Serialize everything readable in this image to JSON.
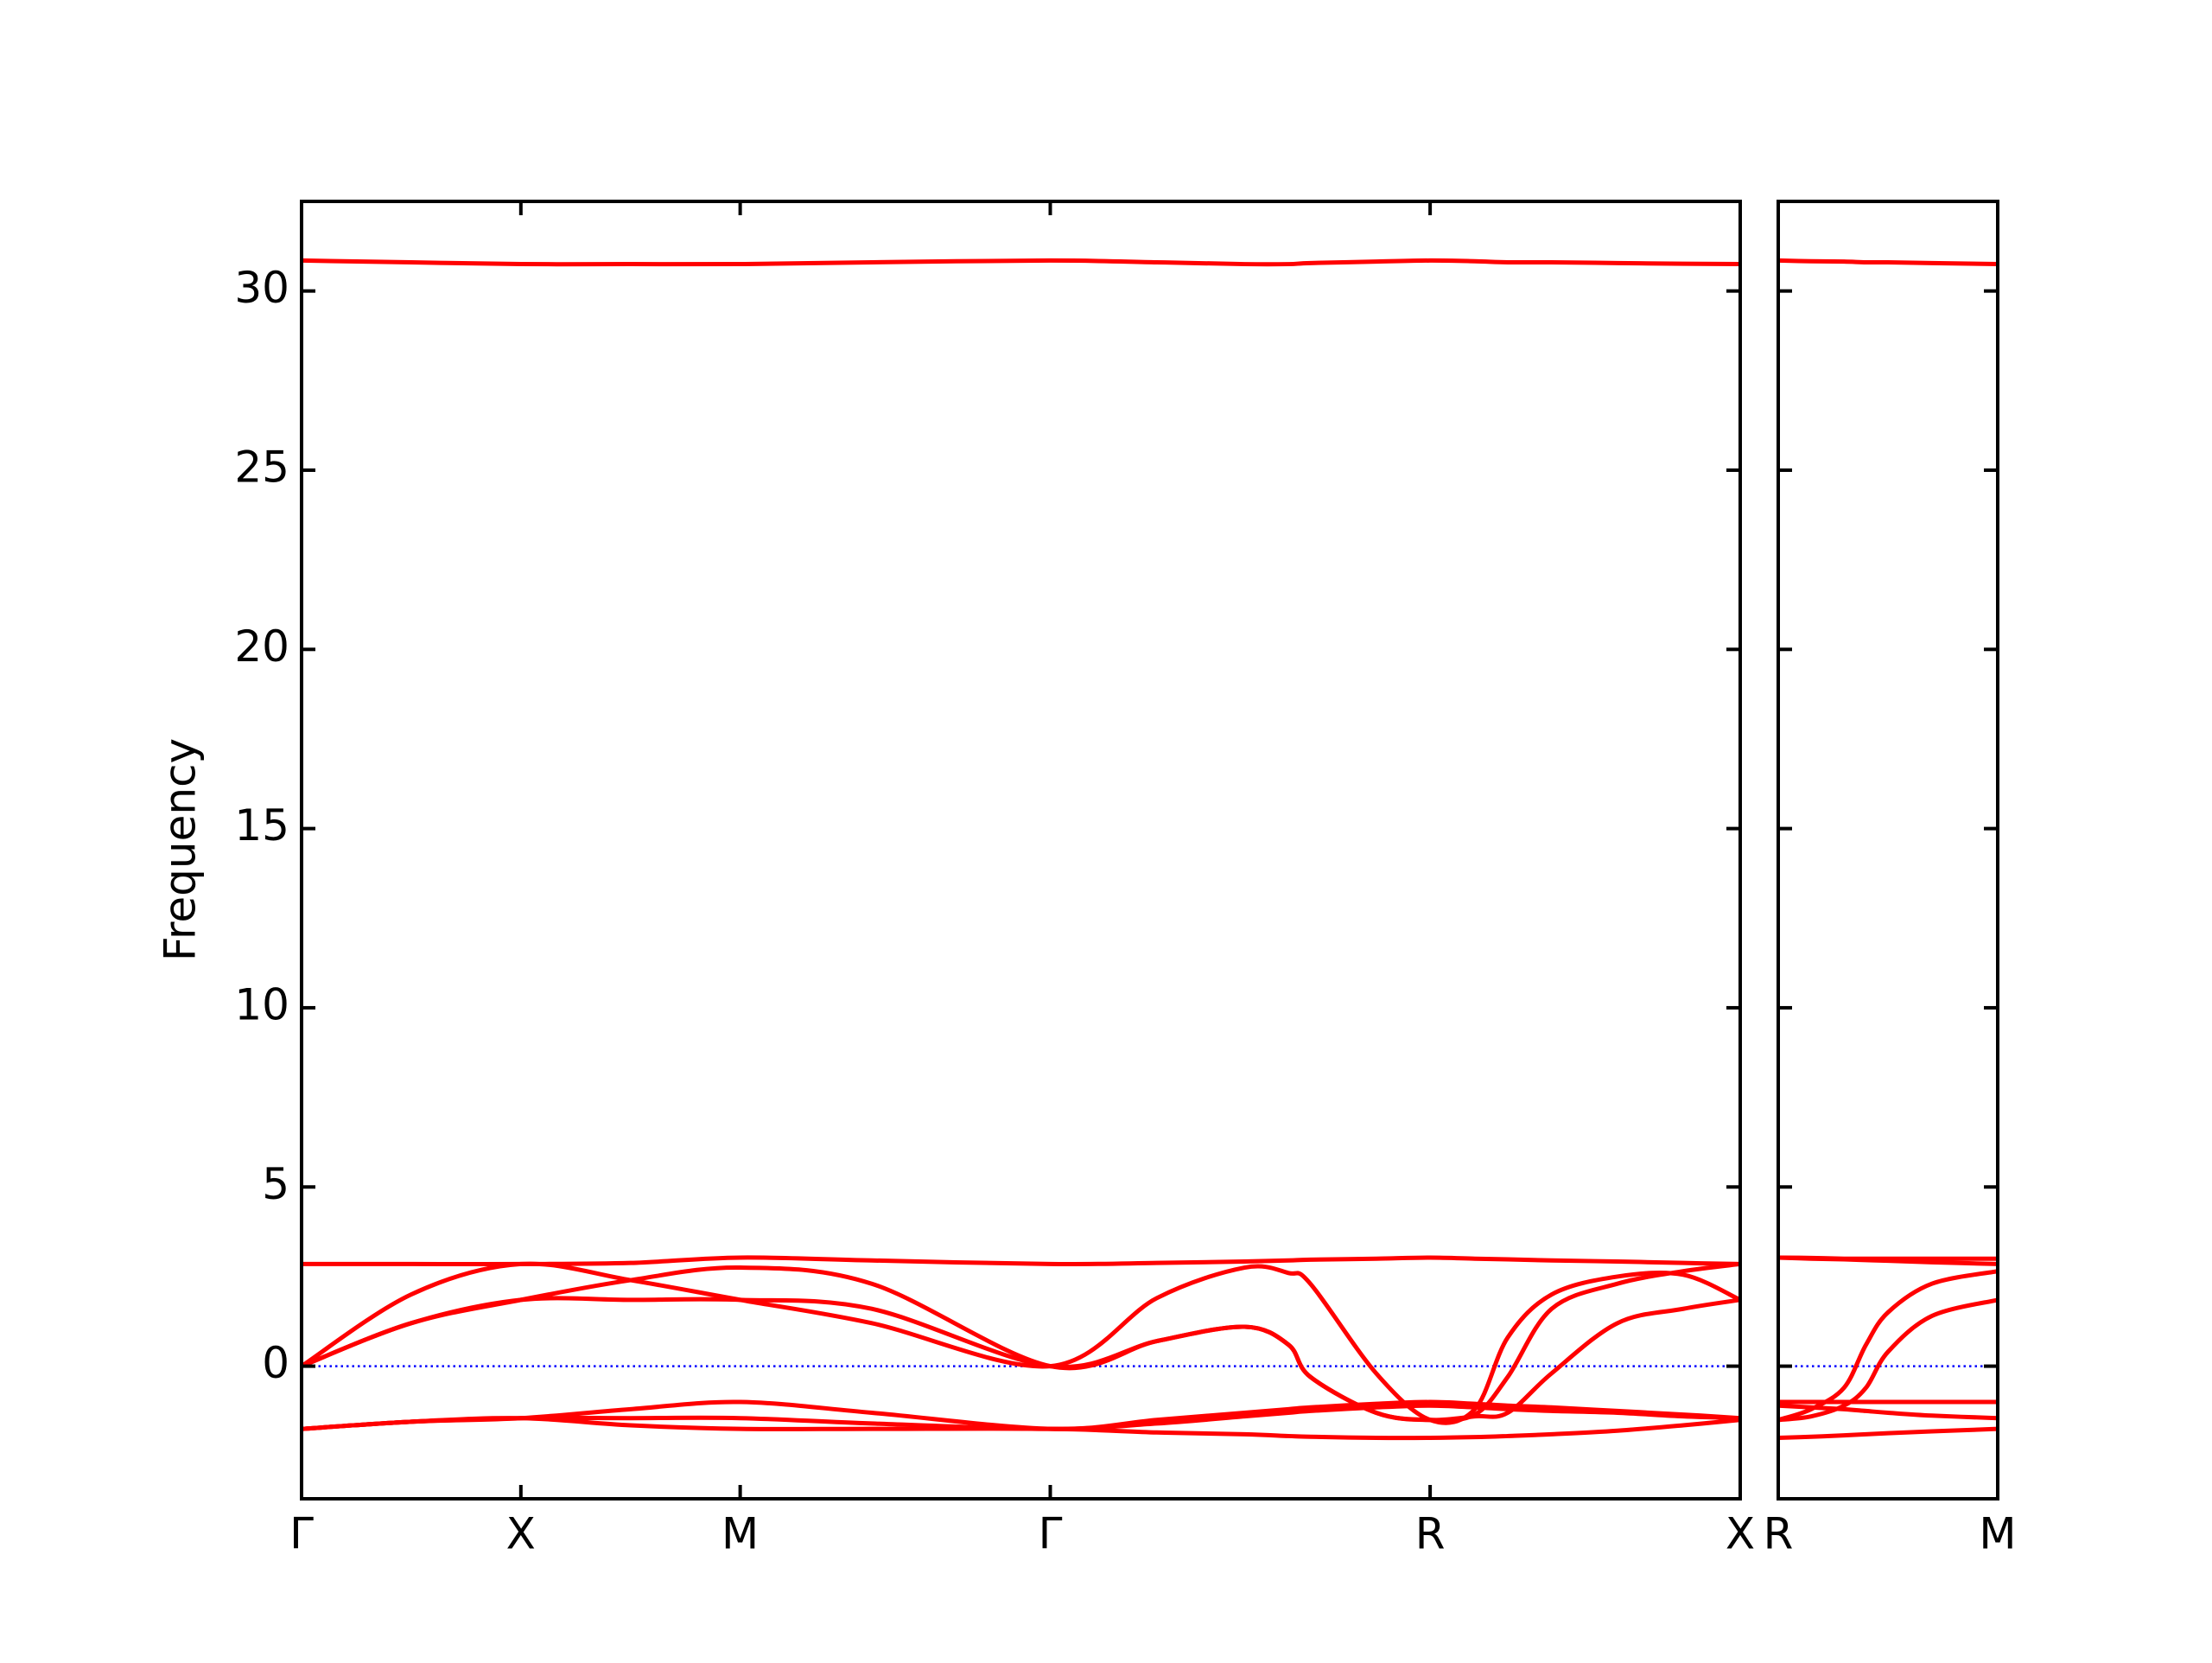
{
  "chart_data": [
    {
      "type": "line",
      "ylabel": "Frequency",
      "xlim": [
        0,
        6.56
      ],
      "ylim": [
        -3.7,
        32.5
      ],
      "xticks": [
        {
          "value": 0,
          "label": "Γ"
        },
        {
          "value": 1,
          "label": "X"
        },
        {
          "value": 2,
          "label": "M"
        },
        {
          "value": 3.414,
          "label": "Γ"
        },
        {
          "value": 5.146,
          "label": "R"
        },
        {
          "value": 6.56,
          "label": "X"
        }
      ],
      "yticks": [
        0,
        5,
        10,
        15,
        20,
        25,
        30
      ],
      "ytick_labels": true,
      "hline": {
        "value": 0,
        "color": "#0000ff",
        "style": "dotted"
      },
      "x": [
        0,
        0.5,
        1,
        1.5,
        2,
        2.6,
        3.414,
        3.9,
        4.3,
        4.5,
        4.6,
        4.9,
        5.146,
        5.35,
        5.5,
        5.7,
        6.0,
        6.3,
        6.56
      ],
      "series": [
        {
          "color": "#ff0000",
          "values": [
            30.85,
            30.8,
            30.75,
            30.75,
            30.75,
            30.8,
            30.85,
            30.8,
            30.75,
            30.75,
            30.78,
            30.82,
            30.85,
            30.83,
            30.8,
            30.8,
            30.78,
            30.76,
            30.75
          ]
        },
        {
          "color": "#ff0000",
          "values": [
            2.85,
            2.85,
            2.85,
            2.88,
            3.03,
            2.95,
            2.85,
            2.88,
            2.92,
            2.95,
            2.97,
            3.0,
            3.03,
            3.0,
            2.98,
            2.95,
            2.92,
            2.88,
            2.85
          ]
        },
        {
          "color": "#ff0000",
          "values": [
            0,
            2.0,
            2.85,
            2.4,
            1.85,
            1.2,
            0,
            1.9,
            2.75,
            2.6,
            2.3,
            -0.2,
            -1.5,
            -1.2,
            0.8,
            2.0,
            2.5,
            2.55,
            1.85
          ]
        },
        {
          "color": "#ff0000",
          "values": [
            0,
            1.2,
            1.85,
            2.4,
            2.75,
            2.3,
            0,
            0.7,
            1.1,
            0.6,
            -0.3,
            -1.3,
            -1.5,
            -1.35,
            -0.3,
            1.6,
            2.3,
            2.65,
            2.85
          ]
        },
        {
          "color": "#ff0000",
          "values": [
            0,
            1.2,
            1.85,
            1.85,
            1.85,
            1.6,
            0,
            0.7,
            1.1,
            0.6,
            -0.3,
            -1.3,
            -1.5,
            -1.4,
            -1.3,
            -0.2,
            1.2,
            1.6,
            1.85
          ]
        },
        {
          "color": "#ff0000",
          "values": [
            -1.75,
            -1.55,
            -1.45,
            -1.2,
            -1.0,
            -1.3,
            -1.75,
            -1.5,
            -1.3,
            -1.2,
            -1.15,
            -1.05,
            -1.0,
            -1.05,
            -1.1,
            -1.15,
            -1.25,
            -1.35,
            -1.45
          ]
        },
        {
          "color": "#ff0000",
          "values": [
            -1.75,
            -1.55,
            -1.45,
            -1.45,
            -1.45,
            -1.6,
            -1.75,
            -1.6,
            -1.4,
            -1.3,
            -1.25,
            -1.15,
            -1.1,
            -1.15,
            -1.2,
            -1.25,
            -1.3,
            -1.4,
            -1.45
          ]
        },
        {
          "color": "#ff0000",
          "values": [
            -1.75,
            -1.55,
            -1.45,
            -1.65,
            -1.75,
            -1.75,
            -1.75,
            -1.85,
            -1.9,
            -1.95,
            -1.97,
            -2.0,
            -2.0,
            -1.98,
            -1.95,
            -1.9,
            -1.8,
            -1.65,
            -1.5
          ]
        }
      ]
    },
    {
      "type": "line",
      "xlim": [
        0,
        1
      ],
      "ylim": [
        -3.7,
        32.5
      ],
      "xticks": [
        {
          "value": 0,
          "label": "R"
        },
        {
          "value": 1,
          "label": "M"
        }
      ],
      "yticks": [
        0,
        5,
        10,
        15,
        20,
        25,
        30
      ],
      "ytick_labels": false,
      "hline": {
        "value": 0,
        "color": "#0000ff",
        "style": "dotted"
      },
      "x": [
        0,
        0.15,
        0.3,
        0.4,
        0.5,
        0.7,
        1
      ],
      "series": [
        {
          "color": "#ff0000",
          "values": [
            30.85,
            30.83,
            30.82,
            30.8,
            30.8,
            30.78,
            30.75
          ]
        },
        {
          "color": "#ff0000",
          "values": [
            3.03,
            3.02,
            3.0,
            3.0,
            3.0,
            3.0,
            3.0
          ]
        },
        {
          "color": "#ff0000",
          "values": [
            3.03,
            3.0,
            2.98,
            2.96,
            2.94,
            2.9,
            2.85
          ]
        },
        {
          "color": "#ff0000",
          "values": [
            -1.5,
            -1.2,
            -0.6,
            0.6,
            1.5,
            2.3,
            2.65
          ]
        },
        {
          "color": "#ff0000",
          "values": [
            -1.5,
            -1.4,
            -1.1,
            -0.6,
            0.4,
            1.4,
            1.85
          ]
        },
        {
          "color": "#ff0000",
          "values": [
            -1.0,
            -1.0,
            -1.0,
            -1.0,
            -1.0,
            -1.0,
            -1.0
          ]
        },
        {
          "color": "#ff0000",
          "values": [
            -1.1,
            -1.15,
            -1.2,
            -1.25,
            -1.3,
            -1.38,
            -1.45
          ]
        },
        {
          "color": "#ff0000",
          "values": [
            -2.0,
            -1.97,
            -1.93,
            -1.9,
            -1.87,
            -1.82,
            -1.75
          ]
        }
      ]
    }
  ]
}
